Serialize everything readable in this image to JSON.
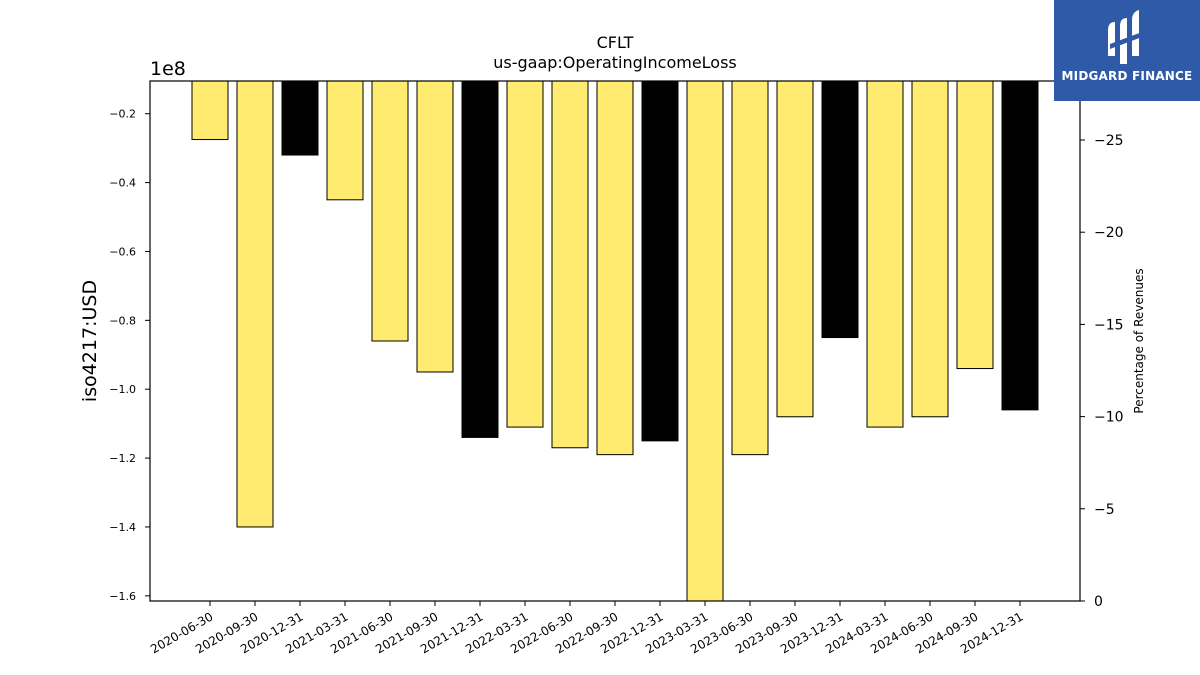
{
  "chart_data": {
    "type": "bar",
    "title": "CFLT",
    "subtitle": "us-gaap:OperatingIncomeLoss",
    "ylabel": "iso4217:USD",
    "y_offset_label": "1e8",
    "y2label": "Percentage of Revenues",
    "categories": [
      "2020-06-30",
      "2020-09-30",
      "2020-12-31",
      "2021-03-31",
      "2021-06-30",
      "2021-09-30",
      "2021-12-31",
      "2022-03-31",
      "2022-06-30",
      "2022-09-30",
      "2022-12-31",
      "2023-03-31",
      "2023-06-30",
      "2023-09-30",
      "2023-12-31",
      "2024-03-31",
      "2024-06-30",
      "2024-09-30",
      "2024-12-31"
    ],
    "values": [
      -0.275,
      -1.4,
      -0.32,
      -0.45,
      -0.86,
      -0.95,
      -1.14,
      -1.11,
      -1.17,
      -1.19,
      -1.15,
      -1.62,
      -1.19,
      -1.08,
      -0.85,
      -1.11,
      -1.08,
      -0.94,
      -1.06
    ],
    "bar_colors": [
      "#ffeb70",
      "#ffeb70",
      "#000000",
      "#ffeb70",
      "#ffeb70",
      "#ffeb70",
      "#000000",
      "#ffeb70",
      "#ffeb70",
      "#ffeb70",
      "#000000",
      "#ffeb70",
      "#ffeb70",
      "#ffeb70",
      "#000000",
      "#ffeb70",
      "#ffeb70",
      "#ffeb70",
      "#000000"
    ],
    "ylim": [
      -1.615,
      -0.105
    ],
    "yticks": [
      -0.2,
      -0.4,
      -0.6,
      -0.8,
      -1.0,
      -1.2,
      -1.4,
      -1.6
    ],
    "y2lim": [
      0,
      -28.2
    ],
    "y2ticks": [
      0,
      -5,
      -10,
      -15,
      -20,
      -25
    ]
  },
  "logo": {
    "text": "MIDGARD FINANCE",
    "icon": "midgard-logo-icon"
  }
}
